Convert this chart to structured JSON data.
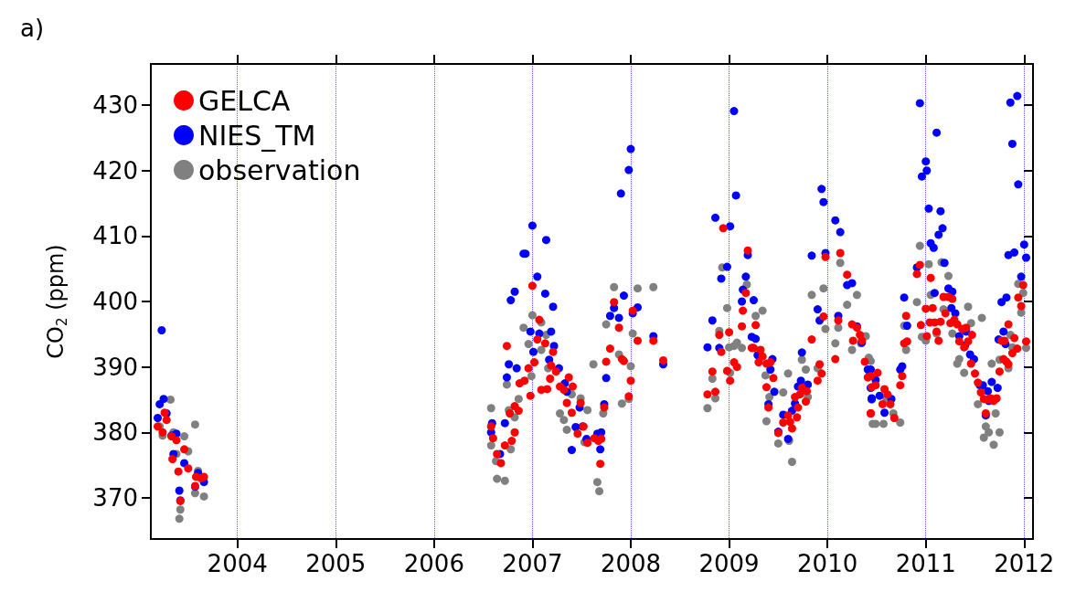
{
  "chart_data": {
    "type": "scatter",
    "ylabel": "CO$_{2}$ (ppm)",
    "annotations": [
      "a)"
    ],
    "xlim": [
      2003.12,
      2012.09
    ],
    "xticks": [
      2004,
      2005,
      2006,
      2007,
      2008,
      2009,
      2010,
      2011,
      2012
    ],
    "ylim": [
      363.7,
      436.3
    ],
    "yticks": [
      370,
      380,
      390,
      400,
      410,
      420,
      430
    ],
    "grid": "x",
    "legend": "top left",
    "marker": "circle",
    "series": [
      {
        "name": "observation",
        "color": "#808080",
        "x": [
          2003.32,
          2003.21,
          2003.24,
          2003.35,
          2003.46,
          2003.5,
          2003.57,
          2003.38,
          2003.6,
          2003.57,
          2003.66,
          2003.42,
          2003.41,
          2006.58,
          2006.58,
          2006.63,
          2006.64,
          2006.72,
          2006.76,
          2006.82,
          2006.78,
          2006.86,
          2006.74,
          2006.91,
          2006.96,
          2006.99,
          2007.0,
          2007.09,
          2007.09,
          2007.14,
          2007.16,
          2007.28,
          2007.32,
          2007.35,
          2007.4,
          2007.49,
          2007.56,
          2007.53,
          2007.66,
          2007.68,
          2007.72,
          2007.62,
          2007.75,
          2007.83,
          2007.88,
          2007.91,
          2008.0,
          2008.02,
          2008.07,
          2008.23,
          2007.98,
          2008.78,
          2008.83,
          2008.86,
          2008.9,
          2008.93,
          2008.98,
          2009.0,
          2009.01,
          2009.05,
          2009.08,
          2009.13,
          2009.18,
          2009.27,
          2009.34,
          2009.37,
          2009.38,
          2009.41,
          2009.5,
          2009.55,
          2009.6,
          2009.61,
          2009.64,
          2009.74,
          2009.78,
          2009.8,
          2009.84,
          2009.9,
          2009.96,
          2009.98,
          2010.08,
          2010.11,
          2010.13,
          2010.2,
          2010.25,
          2010.3,
          2010.34,
          2010.39,
          2010.42,
          2010.46,
          2010.44,
          2010.45,
          2010.49,
          2010.57,
          2010.6,
          2010.67,
          2010.74,
          2010.78,
          2010.8,
          2010.91,
          2010.94,
          2010.96,
          2011.0,
          2011.03,
          2011.05,
          2011.11,
          2011.16,
          2011.18,
          2011.23,
          2011.27,
          2011.32,
          2011.34,
          2011.39,
          2011.43,
          2011.46,
          2011.53,
          2011.57,
          2011.61,
          2011.59,
          2011.64,
          2011.69,
          2011.67,
          2011.71,
          2011.75,
          2011.75,
          2011.84,
          2011.88,
          2011.86,
          2011.94,
          2011.97,
          2011.99,
          2012.02
        ],
        "values": [
          385,
          380.9,
          379.5,
          380,
          379.4,
          377.1,
          381.2,
          376.7,
          374.1,
          370.7,
          370.2,
          368.2,
          366.8,
          383.7,
          378,
          375.6,
          372.9,
          372.6,
          383.4,
          382.3,
          377.4,
          385.1,
          387.3,
          396,
          393.5,
          388.6,
          397.9,
          396.8,
          392.6,
          394.9,
          389.8,
          382.9,
          381.9,
          380.4,
          385.8,
          385.2,
          383.4,
          378.5,
          372.4,
          371,
          382.9,
          390.4,
          396.5,
          402.2,
          391.9,
          384.4,
          390.1,
          395.1,
          402,
          402.2,
          385.1,
          383.7,
          388.2,
          385.2,
          395.5,
          405.2,
          399,
          393,
          389.1,
          393.2,
          393.7,
          392.9,
          402.6,
          397.8,
          398.6,
          388.7,
          381.7,
          385.4,
          378.3,
          386.1,
          389,
          378.7,
          375.5,
          391.1,
          389.6,
          385.4,
          401,
          389.8,
          402,
          395.8,
          393.6,
          396,
          405.9,
          399.5,
          392.6,
          401,
          393.6,
          394.7,
          391.4,
          381.3,
          390.9,
          385,
          381.3,
          381.3,
          385.1,
          382.9,
          381.5,
          396.3,
          392.6,
          399.9,
          408.5,
          394.6,
          394,
          405.7,
          401,
          395.1,
          406,
          398.8,
          403.9,
          395.1,
          390.5,
          391.2,
          389.1,
          399.2,
          396.7,
          384.3,
          397.5,
          380.9,
          379.2,
          380,
          378.1,
          390.5,
          382.9,
          380,
          391.1,
          389.8,
          393,
          394.9,
          402.7,
          398.3,
          401.3,
          392.9
        ]
      },
      {
        "name": "NIES_TM",
        "color": "#0000ff",
        "x": [
          2003.23,
          2003.25,
          2003.21,
          2003.28,
          2003.19,
          2003.33,
          2003.38,
          2003.35,
          2003.46,
          2003.6,
          2003.57,
          2003.66,
          2003.41,
          2003.42,
          2006.58,
          2006.59,
          2006.72,
          2006.67,
          2006.74,
          2006.76,
          2006.78,
          2006.82,
          2006.84,
          2006.91,
          2006.93,
          2007.0,
          2006.98,
          2007.05,
          2007.14,
          2007.13,
          2007.21,
          2007.19,
          2007.07,
          2007.01,
          2007.22,
          2007.17,
          2007.27,
          2007.33,
          2007.35,
          2007.48,
          2007.44,
          2007.51,
          2007.4,
          2007.55,
          2007.66,
          2007.69,
          2007.7,
          2007.73,
          2007.75,
          2007.79,
          2007.83,
          2007.88,
          2007.93,
          2008.02,
          2008.07,
          2008.23,
          2008.33,
          2007.9,
          2007.98,
          2008.0,
          2008.78,
          2008.83,
          2008.86,
          2008.9,
          2008.92,
          2008.98,
          2009.01,
          2009.05,
          2009.07,
          2009.13,
          2009.14,
          2009.17,
          2009.19,
          2009.23,
          2009.27,
          2009.25,
          2009.29,
          2009.44,
          2009.42,
          2009.46,
          2009.4,
          2009.5,
          2009.55,
          2009.6,
          2009.64,
          2009.67,
          2009.7,
          2009.73,
          2009.74,
          2009.8,
          2009.84,
          2009.9,
          2009.92,
          2009.94,
          2009.96,
          2009.98,
          2010.08,
          2010.13,
          2010.11,
          2010.2,
          2010.25,
          2010.3,
          2010.35,
          2010.38,
          2010.41,
          2010.44,
          2010.45,
          2010.44,
          2010.49,
          2010.45,
          2010.53,
          2010.58,
          2010.65,
          2010.74,
          2010.76,
          2010.78,
          2010.81,
          2010.91,
          2010.94,
          2010.96,
          2011.0,
          2011.01,
          2011.03,
          2011.05,
          2011.08,
          2011.09,
          2011.11,
          2011.13,
          2011.15,
          2011.17,
          2011.19,
          2011.23,
          2011.27,
          2011.26,
          2011.3,
          2011.34,
          2011.41,
          2011.4,
          2011.45,
          2011.49,
          2011.55,
          2011.58,
          2011.63,
          2011.67,
          2011.73,
          2011.61,
          2011.64,
          2011.74,
          2011.77,
          2011.79,
          2011.82,
          2011.81,
          2011.84,
          2011.86,
          2011.9,
          2011.88,
          2011.93,
          2011.94,
          2011.97,
          2012.0,
          2012.02
        ],
        "values": [
          395.6,
          385.1,
          384.3,
          382.9,
          382.2,
          379.5,
          379.8,
          376.7,
          375.3,
          373.8,
          371.7,
          372.4,
          371.1,
          369.6,
          380,
          381.4,
          381.4,
          376.7,
          388.4,
          390.4,
          400.2,
          401.5,
          389.8,
          407.3,
          407.3,
          411.6,
          395.4,
          403.8,
          409.4,
          401.2,
          399.2,
          395.4,
          395.1,
          392.3,
          393.2,
          391.1,
          389.8,
          387.5,
          386.2,
          383.8,
          380.8,
          380.9,
          377.3,
          379,
          379.8,
          377.4,
          380,
          384.3,
          388.3,
          397.8,
          399,
          397.5,
          400.9,
          398.2,
          399.1,
          394.7,
          390.4,
          416.5,
          420.1,
          423.3,
          393,
          397.1,
          412.8,
          392.9,
          403.5,
          405.3,
          411.5,
          429.1,
          416.2,
          400,
          401.8,
          403.8,
          407.1,
          394.6,
          394.3,
          400.2,
          391.8,
          391.2,
          389.6,
          386.2,
          384.3,
          380.1,
          382.7,
          379,
          383.3,
          384.4,
          387,
          387.9,
          392.2,
          387.3,
          407,
          398.8,
          397.1,
          417.2,
          415.2,
          407.4,
          412.4,
          410.6,
          397.8,
          402.5,
          402.8,
          396.2,
          393.7,
          null,
          389.6,
          386.8,
          385.2,
          389.6,
          388,
          385.1,
          385.6,
          383,
          385.1,
          389.6,
          390.1,
          400.6,
          396.3,
          405.2,
          430.3,
          419.1,
          421.4,
          420,
          414.2,
          408.9,
          408.2,
          401.3,
          425.8,
          410.2,
          413.8,
          411.2,
          405.9,
          402,
          401.5,
          399,
          398.2,
          394.7,
          395.4,
          393.3,
          391.9,
          391.2,
          387.2,
          387.2,
          386.3,
          387.7,
          386.8,
          382.6,
          384.8,
          394.2,
          399.9,
          395.4,
          400.6,
          393.5,
          407.1,
          430.4,
          407.5,
          424.1,
          431.4,
          417.9,
          403.8,
          408.7,
          406.7
        ]
      },
      {
        "name": "GELCA",
        "color": "#ff0000",
        "x": [
          2003.19,
          2003.24,
          2003.26,
          2003.28,
          2003.33,
          2003.38,
          2003.46,
          2003.34,
          2003.4,
          2003.5,
          2003.42,
          2003.57,
          2003.58,
          2003.63,
          2003.66,
          2006.58,
          2006.6,
          2006.64,
          2006.68,
          2006.72,
          2006.79,
          2006.82,
          2006.77,
          2006.82,
          2006.86,
          2006.87,
          2006.92,
          2006.96,
          2006.74,
          2006.98,
          2007.02,
          2007.0,
          2007.05,
          2007.07,
          2007.13,
          2007.09,
          2007.15,
          2007.18,
          2007.21,
          2007.19,
          2007.24,
          2007.28,
          2007.32,
          2007.37,
          2007.41,
          2007.35,
          2007.4,
          2007.49,
          2007.46,
          2007.52,
          2007.56,
          2007.63,
          2007.67,
          2007.7,
          2007.69,
          2007.73,
          2007.75,
          2007.79,
          2007.83,
          2007.88,
          2007.91,
          2007.93,
          2007.98,
          2008.0,
          2008.02,
          2008.07,
          2008.23,
          2008.33,
          2008.78,
          2008.83,
          2008.86,
          2008.9,
          2008.92,
          2008.94,
          2008.98,
          2009.0,
          2009.01,
          2009.05,
          2009.08,
          2009.13,
          2009.14,
          2009.17,
          2009.19,
          2009.23,
          2009.25,
          2009.27,
          2009.3,
          2009.32,
          2009.34,
          2009.38,
          2009.42,
          2009.45,
          2009.38,
          2009.4,
          2009.5,
          2009.55,
          2009.6,
          2009.62,
          2009.64,
          2009.69,
          2009.7,
          2009.67,
          2009.72,
          2009.74,
          2009.79,
          2009.78,
          2009.84,
          2009.9,
          2009.92,
          2009.94,
          2009.96,
          2009.98,
          2010.08,
          2010.11,
          2010.13,
          2010.2,
          2010.25,
          2010.26,
          2010.3,
          2010.33,
          2010.35,
          2010.38,
          2010.41,
          2010.44,
          2010.45,
          2010.44,
          2010.51,
          2010.44,
          2010.49,
          2010.56,
          2010.58,
          2010.61,
          2010.64,
          2010.68,
          2010.74,
          2010.76,
          2010.78,
          2010.81,
          2010.8,
          2010.91,
          2010.94,
          2010.95,
          2011.0,
          2011.01,
          2011.04,
          2011.05,
          2011.07,
          2011.09,
          2011.11,
          2011.13,
          2011.15,
          2011.18,
          2011.2,
          2011.23,
          2011.25,
          2011.27,
          2011.29,
          2011.32,
          2011.34,
          2011.37,
          2011.41,
          2011.43,
          2011.47,
          2011.39,
          2011.46,
          2011.5,
          2011.53,
          2011.56,
          2011.59,
          2011.61,
          2011.63,
          2011.66,
          2011.69,
          2011.72,
          2011.75,
          2011.77,
          2011.8,
          2011.79,
          2011.82,
          2011.84,
          2011.84,
          2011.88,
          2011.9,
          2011.93,
          2011.94,
          2011.97,
          2011.99,
          2012.02
        ],
        "values": [
          380.9,
          380,
          383,
          381.9,
          379.4,
          378.8,
          377.4,
          375.9,
          374,
          374.5,
          369.5,
          371.8,
          373.2,
          373,
          373.2,
          380.9,
          379.1,
          376.7,
          375.3,
          378,
          378.7,
          380,
          382.9,
          384,
          383.3,
          387.5,
          387.9,
          389.8,
          393.2,
          385.6,
          390.7,
          402.4,
          394.2,
          397.2,
          393.6,
          386.5,
          386.6,
          388.2,
          392.3,
          390.2,
          389.3,
          387,
          386.5,
          388.4,
          387,
          384.5,
          383,
          384.5,
          379.8,
          380.9,
          378.4,
          379.1,
          378.7,
          379,
          375.2,
          383.8,
          390.8,
          392.8,
          399.9,
          396,
          391.2,
          390.9,
          385.5,
          387.9,
          398.6,
          394,
          394,
          391,
          385.8,
          389.3,
          386.2,
          394.9,
          392.3,
          411.2,
          389.4,
          395.3,
          387.9,
          390.7,
          390,
          396.2,
          398.6,
          401.3,
          407.8,
          392.9,
          392.9,
          396.4,
          390.7,
          392.6,
          391.6,
          390.5,
          390.7,
          388.3,
          386.9,
          383.8,
          379.9,
          381.5,
          382.6,
          381.6,
          380.6,
          382.3,
          383.8,
          385.4,
          385.8,
          386.8,
          386.3,
          384.7,
          394.2,
          387.9,
          390.4,
          389,
          397.7,
          406.8,
          391.2,
          397.1,
          407.4,
          404.1,
          396.5,
          394,
          396,
          394.9,
          394,
          390.8,
          388.4,
          382.9,
          386.9,
          388.6,
          389.1,
          382.9,
          387.2,
          384.3,
          386.6,
          385.8,
          384.3,
          382.2,
          387.2,
          388.6,
          393.6,
          393.9,
          397.8,
          404.2,
          405.6,
          396.4,
          398.9,
          394.7,
          396.8,
          403.6,
          399,
          396.8,
          395.4,
          394,
          396.9,
          400.7,
          398.2,
          400.7,
          396.7,
          400.4,
          397.2,
          396.5,
          393.9,
          395.8,
          396,
          393.9,
          394.9,
          393,
          390.5,
          389,
          387.6,
          386.1,
          385.1,
          382.9,
          385,
          385.2,
          384.8,
          385.2,
          389.3,
          394,
          394,
          391.2,
          390.8,
          390.4,
          396.5,
          392.1,
          394.4,
          392.8,
          400.6,
          399.3,
          402.5,
          393.9
        ]
      }
    ]
  }
}
